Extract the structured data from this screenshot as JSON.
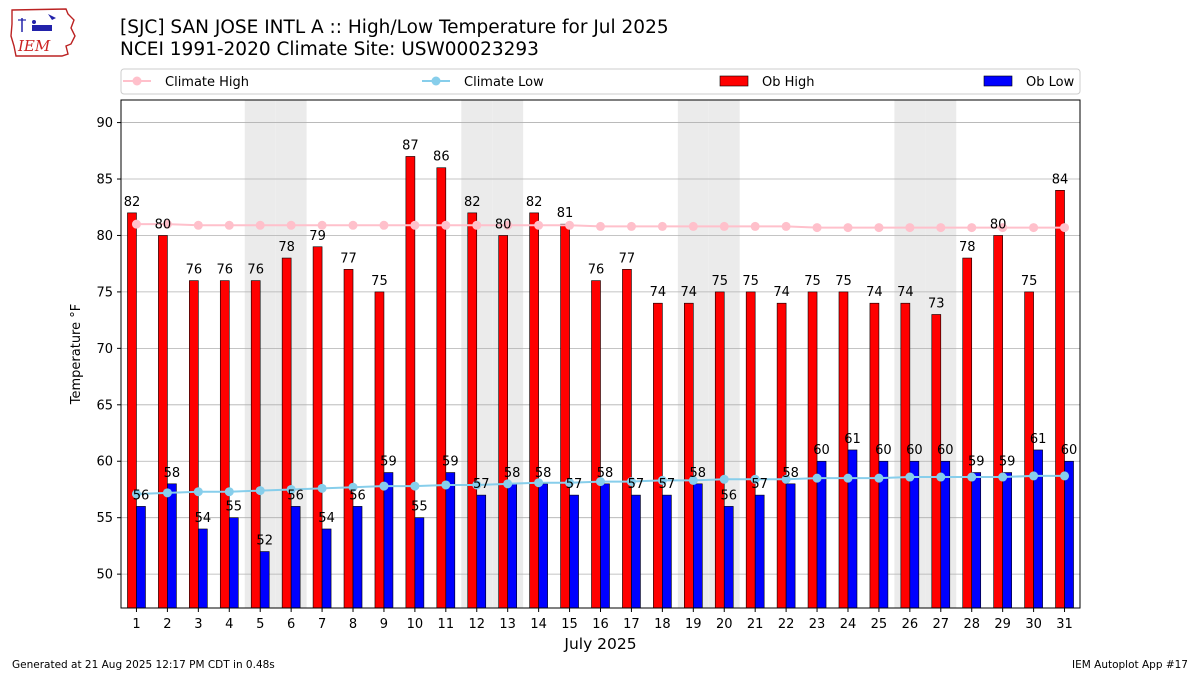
{
  "header": {
    "logo_text": "IEM",
    "title": "[SJC] SAN JOSE INTL A :: High/Low Temperature for Jul 2025",
    "subtitle": "NCEI 1991-2020 Climate Site: USW00023293"
  },
  "footer": {
    "generated": "Generated at 21 Aug 2025 12:17 PM CDT in 0.48s",
    "app": "IEM Autoplot App #17"
  },
  "colors": {
    "ob_high": "#ff0000",
    "ob_low": "#0000ff",
    "climate_high": "#ffc0cb",
    "climate_low": "#87ceeb",
    "weekend_shade": "#ebebeb",
    "grid": "#b0b0b0"
  },
  "chart_data": {
    "type": "bar",
    "title": "[SJC] SAN JOSE INTL A :: High/Low Temperature for Jul 2025",
    "xlabel": "July 2025",
    "ylabel": "Temperature °F",
    "ylim": [
      47,
      92
    ],
    "yticks": [
      50,
      55,
      60,
      65,
      70,
      75,
      80,
      85,
      90
    ],
    "grid": "horizontal",
    "legend_position": "top",
    "categories": [
      "1",
      "2",
      "3",
      "4",
      "5",
      "6",
      "7",
      "8",
      "9",
      "10",
      "11",
      "12",
      "13",
      "14",
      "15",
      "16",
      "17",
      "18",
      "19",
      "20",
      "21",
      "22",
      "23",
      "24",
      "25",
      "26",
      "27",
      "28",
      "29",
      "30",
      "31"
    ],
    "shaded_days": [
      5,
      6,
      12,
      13,
      19,
      20,
      26,
      27
    ],
    "series": [
      {
        "name": "Climate High",
        "kind": "line",
        "color": "#ffc0cb",
        "values": [
          81.0,
          81.0,
          80.9,
          80.9,
          80.9,
          80.9,
          80.9,
          80.9,
          80.9,
          80.9,
          80.9,
          80.9,
          80.9,
          80.9,
          80.9,
          80.8,
          80.8,
          80.8,
          80.8,
          80.8,
          80.8,
          80.8,
          80.7,
          80.7,
          80.7,
          80.7,
          80.7,
          80.7,
          80.7,
          80.7,
          80.7
        ]
      },
      {
        "name": "Climate Low",
        "kind": "line",
        "color": "#87ceeb",
        "values": [
          57.1,
          57.2,
          57.3,
          57.3,
          57.4,
          57.5,
          57.6,
          57.7,
          57.8,
          57.8,
          57.9,
          57.9,
          58.0,
          58.1,
          58.1,
          58.2,
          58.2,
          58.3,
          58.3,
          58.4,
          58.4,
          58.4,
          58.5,
          58.5,
          58.5,
          58.6,
          58.6,
          58.6,
          58.6,
          58.7,
          58.7
        ]
      },
      {
        "name": "Ob High",
        "kind": "bar",
        "color": "#ff0000",
        "values": [
          82,
          80,
          76,
          76,
          76,
          78,
          79,
          77,
          75,
          87,
          86,
          82,
          80,
          82,
          81,
          76,
          77,
          74,
          74,
          75,
          75,
          74,
          75,
          75,
          74,
          74,
          73,
          78,
          80,
          75,
          84
        ]
      },
      {
        "name": "Ob Low",
        "kind": "bar",
        "color": "#0000ff",
        "values": [
          56,
          58,
          54,
          55,
          52,
          56,
          54,
          56,
          59,
          55,
          59,
          57,
          58,
          58,
          57,
          58,
          57,
          57,
          58,
          56,
          57,
          58,
          60,
          61,
          60,
          60,
          60,
          59,
          59,
          61,
          60
        ]
      }
    ]
  }
}
